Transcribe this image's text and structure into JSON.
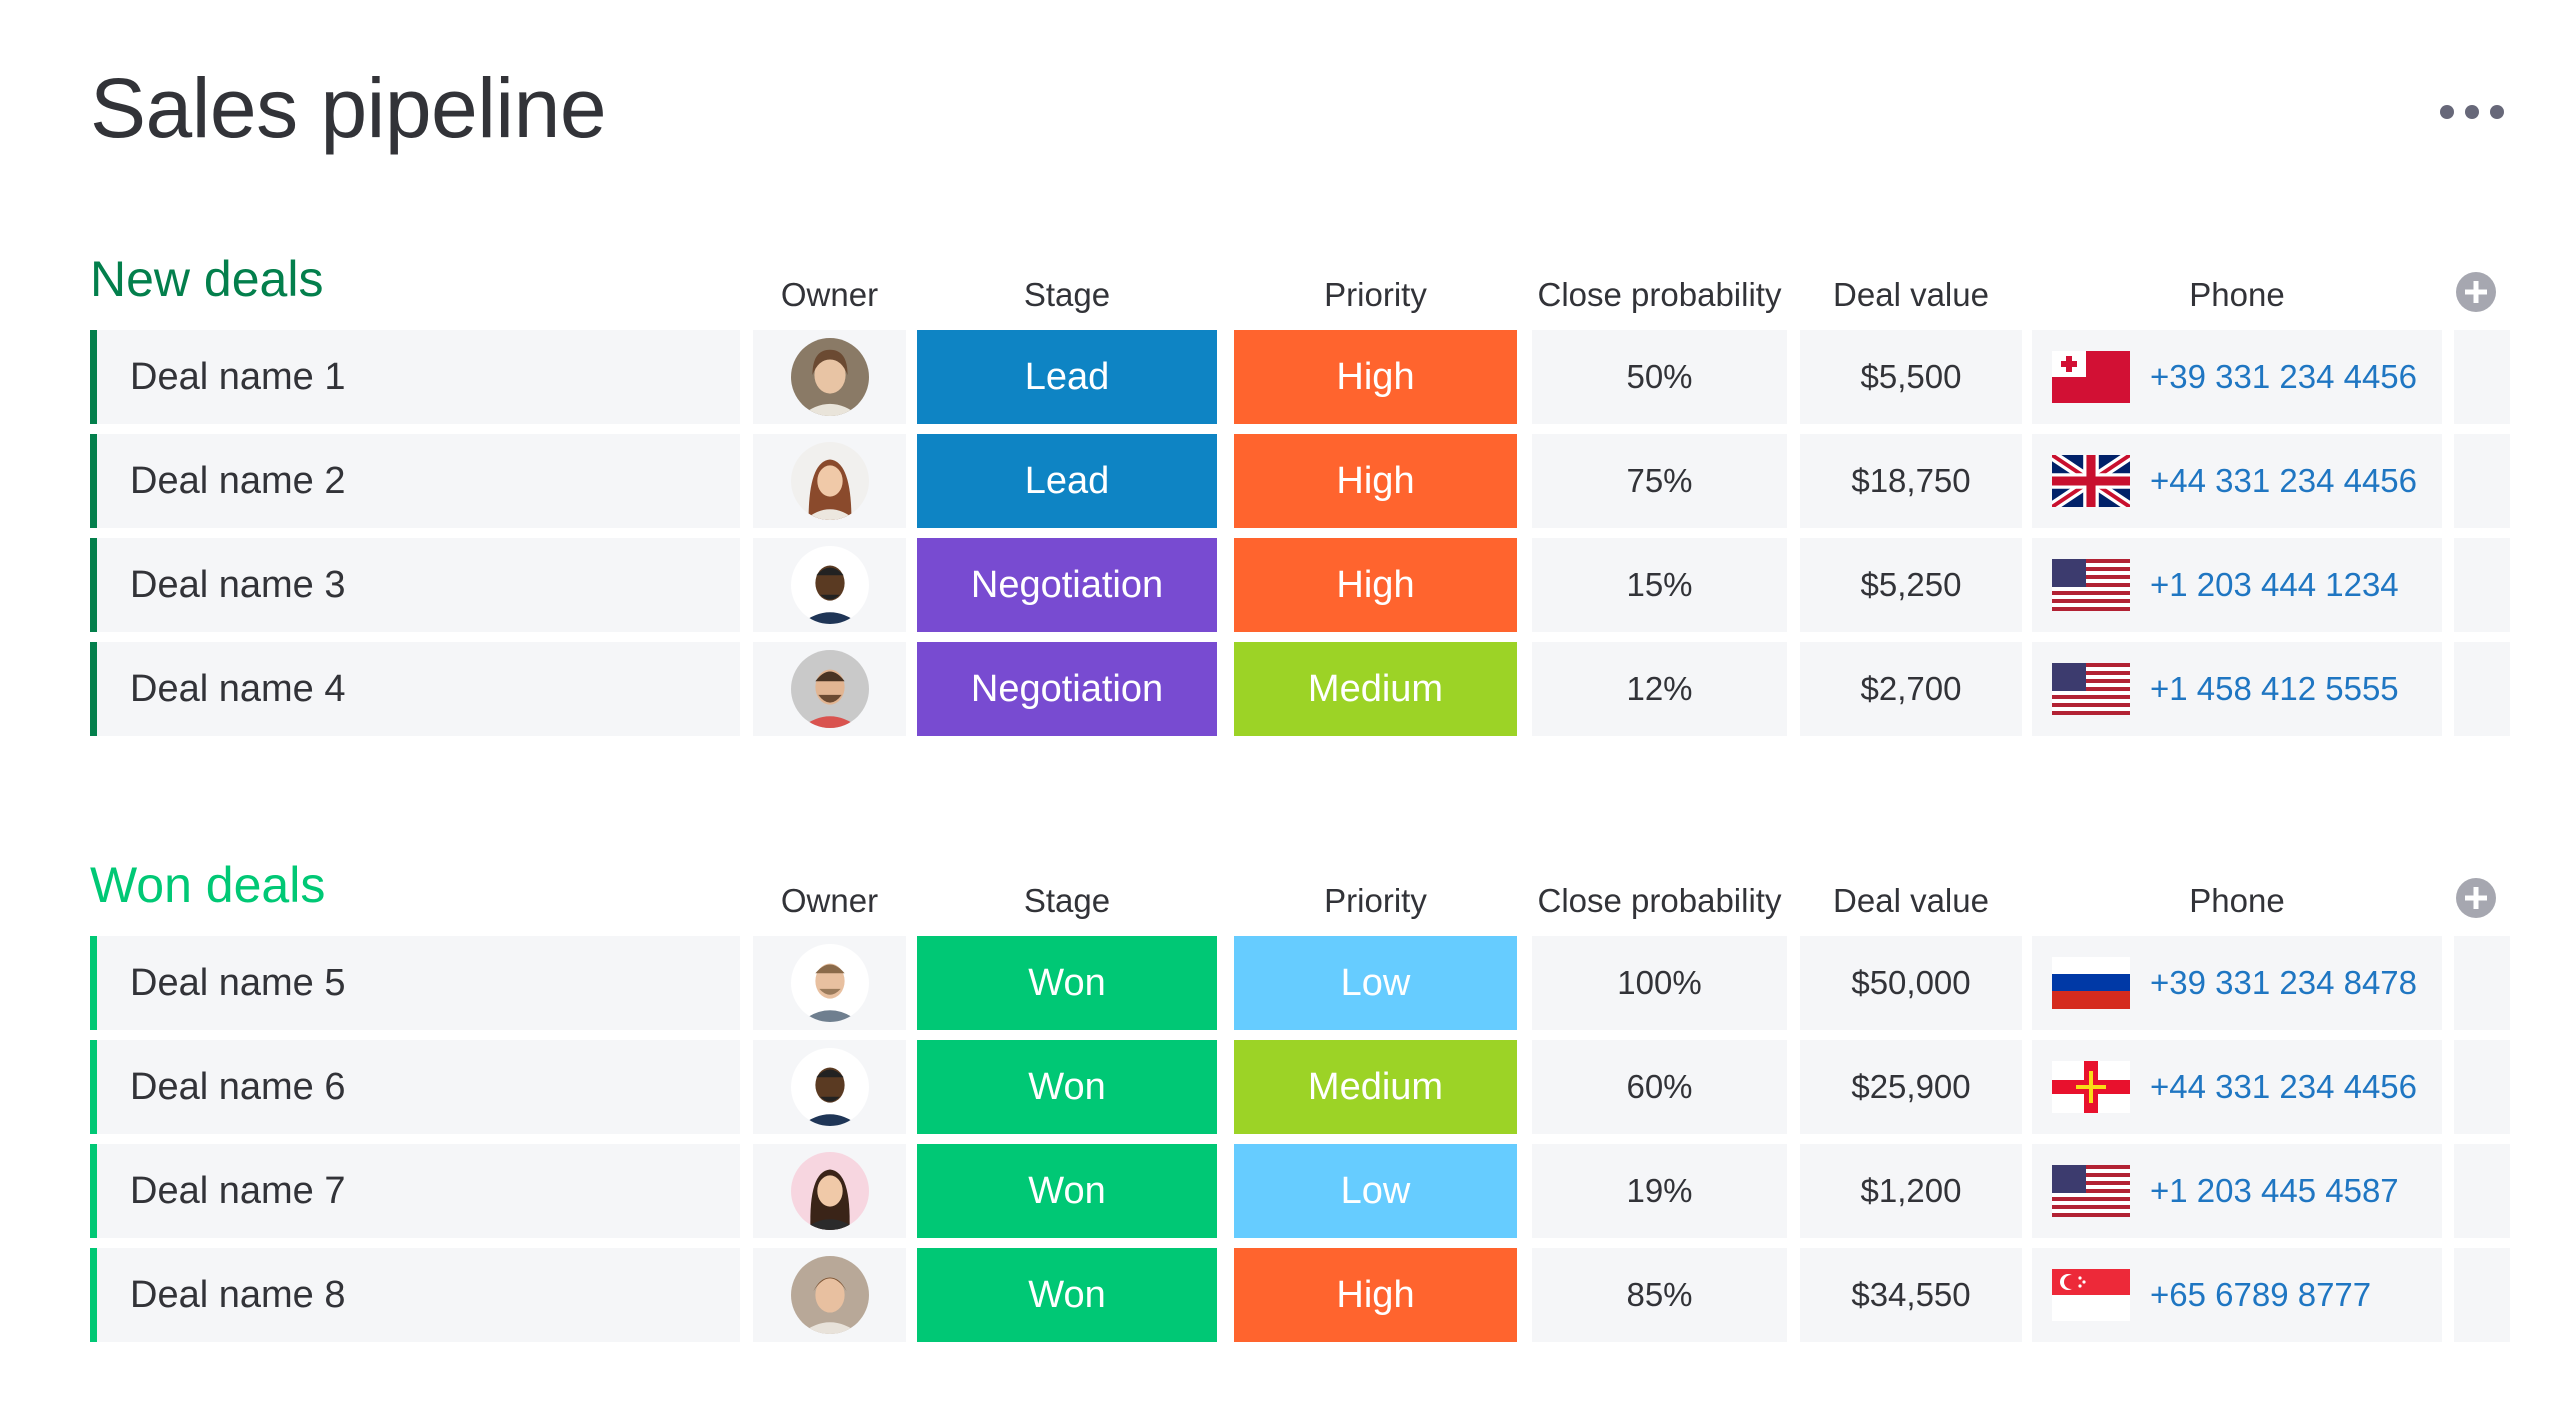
{
  "title": "Sales pipeline",
  "more_icon": "more-horizontal-icon",
  "columns": {
    "owner": "Owner",
    "stage": "Stage",
    "priority": "Priority",
    "close_probability": "Close probability",
    "deal_value": "Deal value",
    "phone": "Phone"
  },
  "colors": {
    "lead": "#0e84c4",
    "negotiation": "#784bd1",
    "won": "#00c875",
    "high": "#ff642e",
    "medium": "#9cd326",
    "low": "#66ccff",
    "new_group": "#037f4c",
    "won_group": "#00c875",
    "phone_link": "#1f76c2"
  },
  "groups": [
    {
      "title": "New deals",
      "rows": [
        {
          "name": "Deal name 1",
          "stage": "Lead",
          "priority": "High",
          "probability": "50%",
          "value": "$5,500",
          "flag": "tonga-flag-icon",
          "phone": "+39 331 234 4456"
        },
        {
          "name": "Deal name 2",
          "stage": "Lead",
          "priority": "High",
          "probability": "75%",
          "value": "$18,750",
          "flag": "uk-flag-icon",
          "phone": "+44 331 234 4456"
        },
        {
          "name": "Deal name 3",
          "stage": "Negotiation",
          "priority": "High",
          "probability": "15%",
          "value": "$5,250",
          "flag": "us-flag-icon",
          "phone": "+1 203 444 1234"
        },
        {
          "name": "Deal name 4",
          "stage": "Negotiation",
          "priority": "Medium",
          "probability": "12%",
          "value": "$2,700",
          "flag": "us-flag-icon",
          "phone": "+1 458 412 5555"
        }
      ]
    },
    {
      "title": "Won deals",
      "rows": [
        {
          "name": "Deal name 5",
          "stage": "Won",
          "priority": "Low",
          "probability": "100%",
          "value": "$50,000",
          "flag": "russia-flag-icon",
          "phone": "+39 331 234 8478"
        },
        {
          "name": "Deal name 6",
          "stage": "Won",
          "priority": "Medium",
          "probability": "60%",
          "value": "$25,900",
          "flag": "guernsey-flag-icon",
          "phone": "+44 331 234 4456"
        },
        {
          "name": "Deal name 7",
          "stage": "Won",
          "priority": "Low",
          "probability": "19%",
          "value": "$1,200",
          "flag": "us-flag-icon",
          "phone": "+1 203 445 4587"
        },
        {
          "name": "Deal name 8",
          "stage": "Won",
          "priority": "High",
          "probability": "85%",
          "value": "$34,550",
          "flag": "singapore-flag-icon",
          "phone": "+65 6789 8777"
        }
      ]
    }
  ]
}
